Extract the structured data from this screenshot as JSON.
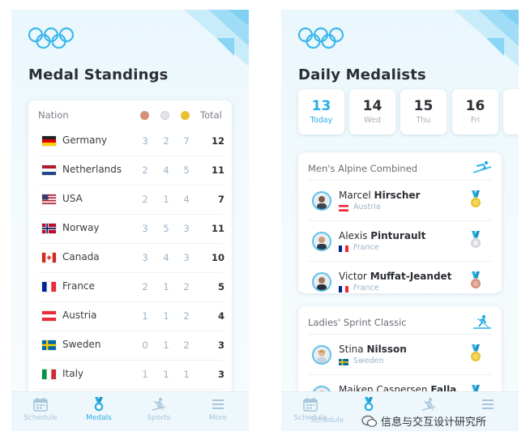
{
  "left": {
    "title": "Medal Standings",
    "table_header": {
      "nation": "Nation",
      "total": "Total"
    },
    "rows": [
      {
        "country": "Germany",
        "bronze": "3",
        "silver": "2",
        "gold": "7",
        "total": "12"
      },
      {
        "country": "Netherlands",
        "bronze": "2",
        "silver": "4",
        "gold": "5",
        "total": "11"
      },
      {
        "country": "USA",
        "bronze": "2",
        "silver": "1",
        "gold": "4",
        "total": "7"
      },
      {
        "country": "Norway",
        "bronze": "3",
        "silver": "5",
        "gold": "3",
        "total": "11"
      },
      {
        "country": "Canada",
        "bronze": "3",
        "silver": "4",
        "gold": "3",
        "total": "10"
      },
      {
        "country": "France",
        "bronze": "2",
        "silver": "1",
        "gold": "2",
        "total": "5"
      },
      {
        "country": "Austria",
        "bronze": "1",
        "silver": "1",
        "gold": "2",
        "total": "4"
      },
      {
        "country": "Sweden",
        "bronze": "0",
        "silver": "1",
        "gold": "2",
        "total": "3"
      },
      {
        "country": "Italy",
        "bronze": "1",
        "silver": "1",
        "gold": "1",
        "total": "3"
      }
    ]
  },
  "right": {
    "title": "Daily Medalists",
    "days": [
      {
        "num": "13",
        "label": "Today"
      },
      {
        "num": "14",
        "label": "Wed"
      },
      {
        "num": "15",
        "label": "Thu"
      },
      {
        "num": "16",
        "label": "Fri"
      }
    ],
    "events": [
      {
        "title": "Men's Alpine Combined",
        "athletes": [
          {
            "first": "Marcel",
            "last": "Hirscher",
            "country": "Austria"
          },
          {
            "first": "Alexis",
            "last": "Pinturault",
            "country": "France"
          },
          {
            "first": "Victor",
            "last": "Muffat-Jeandet",
            "country": "France"
          }
        ]
      },
      {
        "title": "Ladies' Sprint Classic",
        "athletes": [
          {
            "first": "Stina",
            "last": "Nilsson",
            "country": "Sweden"
          },
          {
            "first": "Maiken Caspersen",
            "last": "Falla",
            "country": ""
          }
        ]
      }
    ]
  },
  "tabs": {
    "schedule": "Schedule",
    "medals": "Medals",
    "sports": "Sports",
    "more": "More"
  },
  "watermark": "信息与交互设计研究所",
  "colors": {
    "accent": "#29aee5",
    "gold": "#e8c230",
    "silver": "#e2e4e7",
    "bronze": "#d4917c"
  }
}
